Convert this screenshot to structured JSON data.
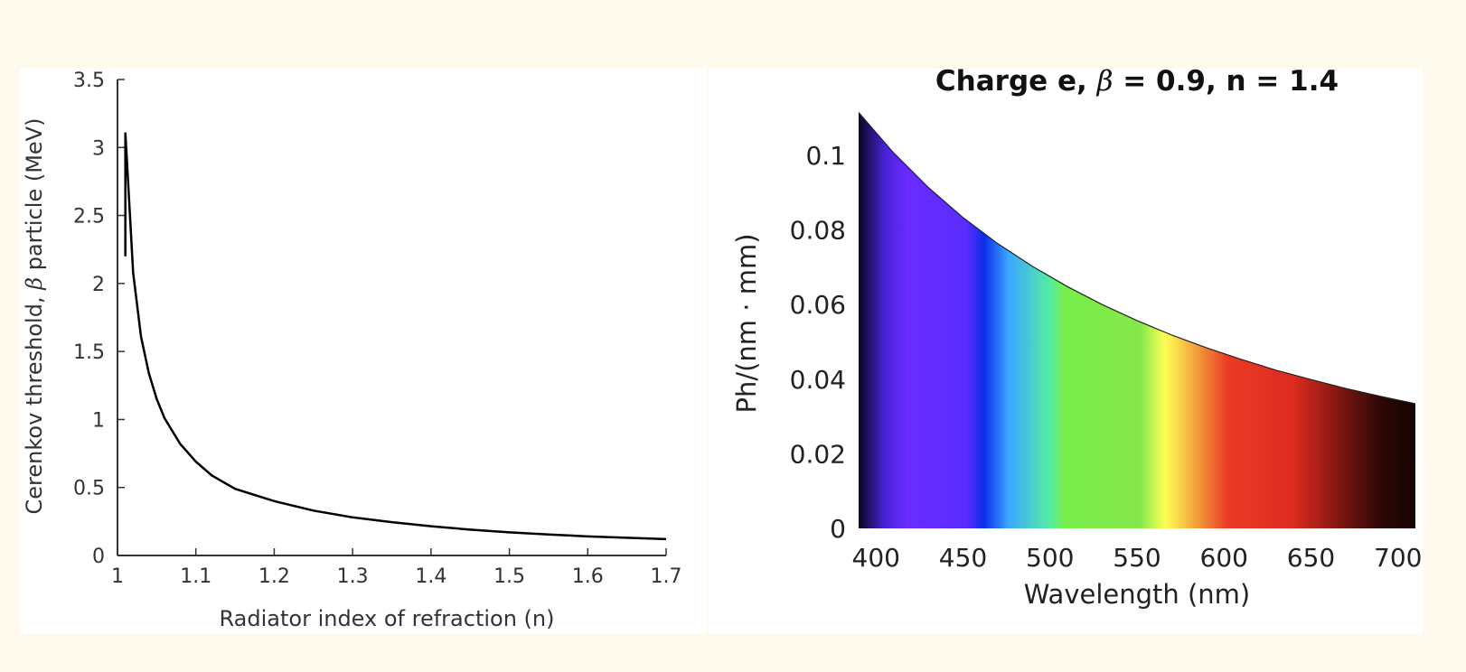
{
  "chart_data": [
    {
      "type": "line",
      "title": "",
      "xlabel": "Radiator index of refraction (n)",
      "ylabel_parts": [
        "Cerenkov threshold, ",
        "β",
        " particle (MeV)"
      ],
      "xlim": [
        1,
        1.7
      ],
      "ylim": [
        0,
        3.5
      ],
      "xticks": [
        1,
        1.1,
        1.2,
        1.3,
        1.4,
        1.5,
        1.6,
        1.7
      ],
      "xtick_labels": [
        "1",
        "1.1",
        "1.2",
        "1.3",
        "1.4",
        "1.5",
        "1.6",
        "1.7"
      ],
      "yticks": [
        0,
        0.5,
        1,
        1.5,
        2,
        2.5,
        3,
        3.5
      ],
      "ytick_labels": [
        "0",
        "0.5",
        "1",
        "1.5",
        "2",
        "2.5",
        "3",
        "3.5"
      ],
      "grid": false,
      "series": [
        {
          "color": "#000000",
          "x": [
            1.01,
            1.02,
            1.03,
            1.04,
            1.05,
            1.06,
            1.08,
            1.1,
            1.12,
            1.15,
            1.2,
            1.25,
            1.3,
            1.35,
            1.4,
            1.45,
            1.5,
            1.55,
            1.6,
            1.65,
            1.7
          ],
          "y": [
            3.11,
            2.08,
            1.61,
            1.34,
            1.15,
            1.01,
            0.82,
            0.69,
            0.59,
            0.49,
            0.4,
            0.33,
            0.28,
            0.245,
            0.215,
            0.19,
            0.17,
            0.155,
            0.14,
            0.13,
            0.12
          ]
        }
      ]
    },
    {
      "type": "area",
      "title_parts": [
        "Charge e, ",
        "β",
        " = 0.9, n = 1.4"
      ],
      "xlabel": "Wavelength (nm)",
      "ylabel": "Ph/(nm · mm)",
      "xlim": [
        390,
        710
      ],
      "ylim": [
        0,
        0.115
      ],
      "xticks": [
        400,
        450,
        500,
        550,
        600,
        650,
        700
      ],
      "xtick_labels": [
        "400",
        "450",
        "500",
        "550",
        "600",
        "650",
        "700"
      ],
      "yticks": [
        0,
        0.02,
        0.04,
        0.06,
        0.08,
        0.1
      ],
      "ytick_labels": [
        "0",
        "0.02",
        "0.04",
        "0.06",
        "0.08",
        "0.1"
      ],
      "grid": false,
      "series": [
        {
          "x": [
            390,
            410,
            430,
            450,
            470,
            490,
            510,
            530,
            550,
            570,
            590,
            610,
            630,
            650,
            670,
            690,
            710
          ],
          "y": [
            0.1115,
            0.1007,
            0.0914,
            0.0833,
            0.0763,
            0.0702,
            0.0648,
            0.06,
            0.0557,
            0.0518,
            0.0484,
            0.0453,
            0.0424,
            0.0399,
            0.0375,
            0.0354,
            0.0334
          ]
        }
      ],
      "fill_gradient": [
        {
          "at": 390,
          "color": "#0b0522"
        },
        {
          "at": 405,
          "color": "#4722d8"
        },
        {
          "at": 418,
          "color": "#6a2cff"
        },
        {
          "at": 452,
          "color": "#5a2cff"
        },
        {
          "at": 462,
          "color": "#0a2ee8"
        },
        {
          "at": 476,
          "color": "#3aa6ff"
        },
        {
          "at": 500,
          "color": "#55eda0"
        },
        {
          "at": 508,
          "color": "#77ee4a"
        },
        {
          "at": 552,
          "color": "#86e84a"
        },
        {
          "at": 566,
          "color": "#ffff55"
        },
        {
          "at": 584,
          "color": "#f2a03c"
        },
        {
          "at": 602,
          "color": "#ea3a26"
        },
        {
          "at": 640,
          "color": "#dc2c20"
        },
        {
          "at": 668,
          "color": "#7a1510"
        },
        {
          "at": 690,
          "color": "#2c0807"
        },
        {
          "at": 710,
          "color": "#150303"
        }
      ]
    }
  ]
}
